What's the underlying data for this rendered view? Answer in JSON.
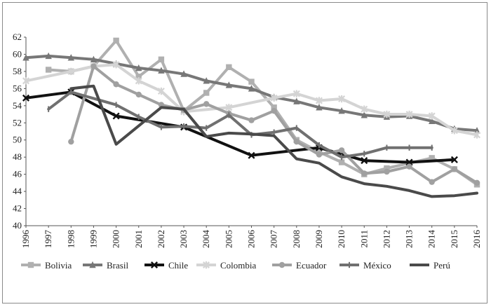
{
  "chart_data": {
    "type": "line",
    "title": "",
    "xlabel": "",
    "ylabel": "",
    "ylim": [
      40,
      62
    ],
    "y_step": 2,
    "grid": false,
    "legend_position": "bottom",
    "x": [
      1996,
      1997,
      1998,
      1999,
      2000,
      2001,
      2002,
      2003,
      2004,
      2005,
      2006,
      2007,
      2008,
      2009,
      2010,
      2011,
      2012,
      2013,
      2014,
      2015,
      2016
    ],
    "series": [
      {
        "name": "Bolivia",
        "color": "#b0b0b0",
        "marker": "square",
        "values": [
          null,
          58.2,
          58.0,
          58.6,
          61.6,
          57.4,
          59.4,
          53.4,
          55.5,
          58.5,
          56.8,
          53.8,
          50.0,
          48.6,
          47.4,
          46.0,
          46.7,
          47.3,
          47.9,
          46.6,
          44.8
        ]
      },
      {
        "name": "Brasil",
        "color": "#777777",
        "marker": "triangle",
        "values": [
          59.6,
          59.8,
          59.6,
          59.4,
          58.9,
          58.4,
          58.1,
          57.7,
          56.9,
          56.4,
          56.0,
          55.0,
          54.5,
          53.8,
          53.4,
          52.9,
          52.7,
          52.8,
          52.2,
          51.3,
          51.1
        ]
      },
      {
        "name": "Chile",
        "color": "#111111",
        "marker": "x",
        "values": [
          54.9,
          null,
          55.6,
          null,
          52.8,
          null,
          null,
          51.5,
          null,
          null,
          48.2,
          null,
          null,
          49.1,
          null,
          47.6,
          null,
          47.4,
          null,
          47.7,
          null
        ]
      },
      {
        "name": "Colombia",
        "color": "#d4d4d4",
        "marker": "star",
        "values": [
          56.9,
          null,
          58.0,
          58.6,
          58.8,
          56.9,
          55.7,
          53.3,
          null,
          53.8,
          null,
          54.9,
          55.4,
          54.6,
          54.8,
          53.6,
          53.0,
          53.0,
          52.8,
          51.1,
          50.6
        ]
      },
      {
        "name": "Ecuador",
        "color": "#a0a0a0",
        "marker": "circle",
        "values": [
          null,
          null,
          49.8,
          58.6,
          56.5,
          55.3,
          54.1,
          53.5,
          54.2,
          53.1,
          52.3,
          53.4,
          49.8,
          48.3,
          48.8,
          46.1,
          46.3,
          46.9,
          45.1,
          46.6,
          45.0
        ]
      },
      {
        "name": "México",
        "color": "#707070",
        "marker": "plus",
        "values": [
          null,
          53.6,
          55.6,
          null,
          54.1,
          52.7,
          51.5,
          51.6,
          51.4,
          52.9,
          50.6,
          50.9,
          51.4,
          49.4,
          48.0,
          48.4,
          49.1,
          49.1,
          49.1,
          null,
          null
        ]
      },
      {
        "name": "Perú",
        "color": "#4a4a4a",
        "marker": "none",
        "values": [
          null,
          null,
          56.0,
          56.3,
          49.5,
          null,
          53.8,
          53.6,
          50.4,
          50.8,
          50.7,
          50.5,
          47.8,
          47.3,
          45.7,
          44.9,
          44.6,
          44.1,
          43.4,
          43.5,
          43.8
        ]
      }
    ]
  }
}
